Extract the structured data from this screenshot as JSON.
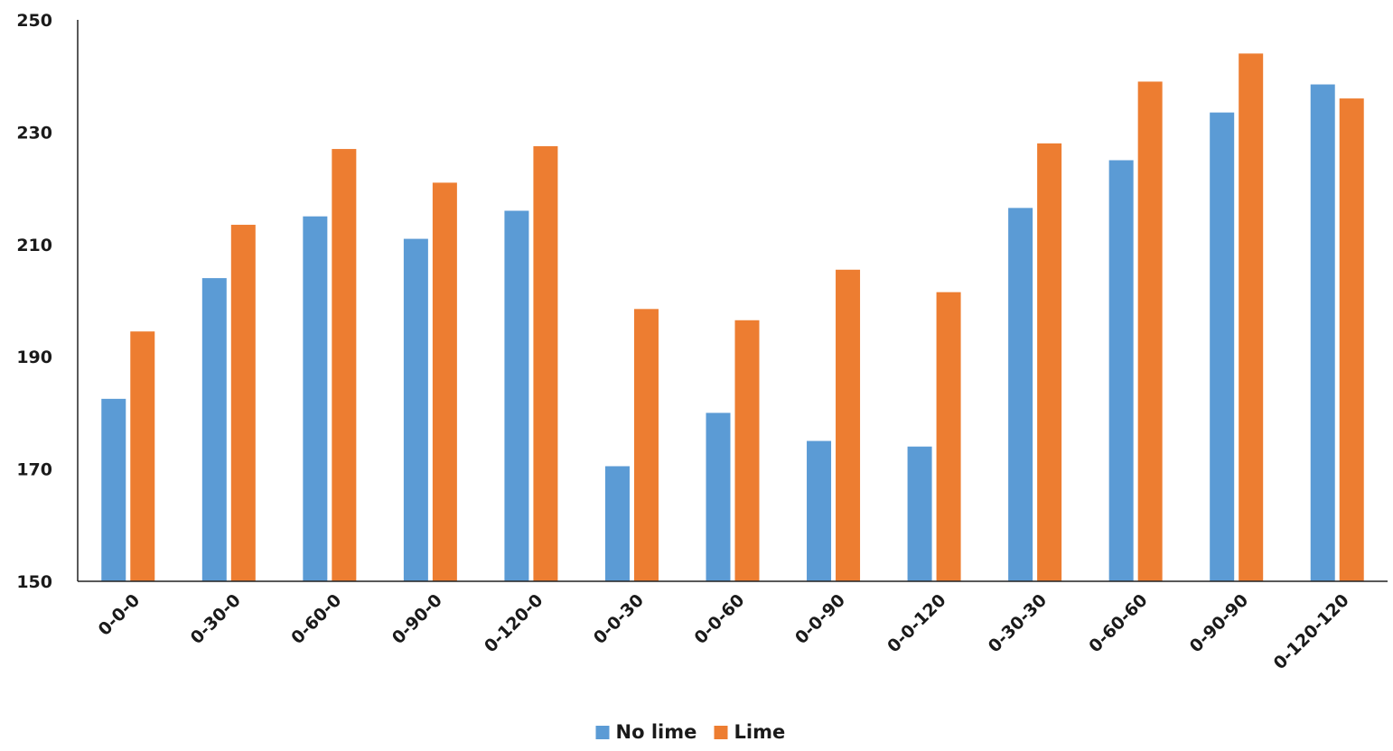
{
  "chart_data": {
    "type": "bar",
    "categories": [
      "0-0-0",
      "0-30-0",
      "0-60-0",
      "0-90-0",
      "0-120-0",
      "0-0-30",
      "0-0-60",
      "0-0-90",
      "0-0-120",
      "0-30-30",
      "0-60-60",
      "0-90-90",
      "0-120-120"
    ],
    "series": [
      {
        "name": "No lime",
        "color": "#5B9BD5",
        "values": [
          182.5,
          204,
          215,
          211,
          216,
          170.5,
          180,
          175,
          174,
          216.5,
          225,
          233.5,
          238.5
        ]
      },
      {
        "name": "Lime",
        "color": "#ED7D31",
        "values": [
          194.5,
          213.5,
          227,
          221,
          227.5,
          198.5,
          196.5,
          205.5,
          201.5,
          228,
          239,
          244,
          236
        ]
      }
    ],
    "title": "",
    "xlabel": "",
    "ylabel": "",
    "ylim": [
      150,
      250
    ],
    "yticks": [
      150,
      170,
      190,
      210,
      230,
      250
    ],
    "grid": false,
    "legend": "bottom-center"
  }
}
